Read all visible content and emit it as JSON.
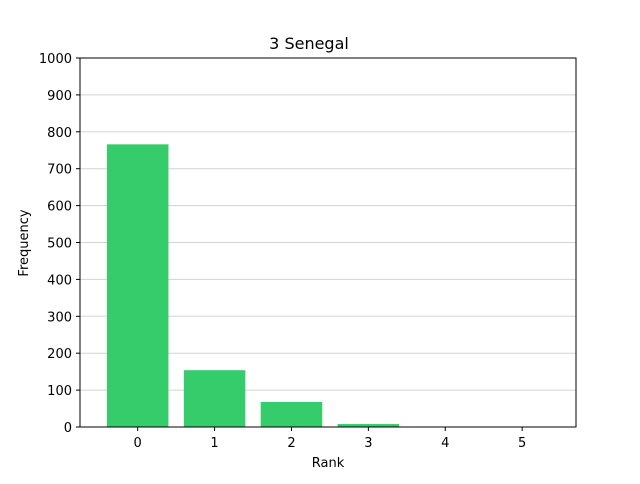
{
  "chart_data": {
    "type": "bar",
    "title": "3 Senegal",
    "xlabel": "Rank",
    "ylabel": "Frequency",
    "categories": [
      "0",
      "1",
      "2",
      "3",
      "4",
      "5"
    ],
    "values": [
      766,
      154,
      68,
      8,
      0,
      0
    ],
    "ylim": [
      0,
      1000
    ],
    "yticks": [
      0,
      100,
      200,
      300,
      400,
      500,
      600,
      700,
      800,
      900,
      1000
    ],
    "xlim": [
      -0.75,
      5.7
    ],
    "grid": "y",
    "legend": "none",
    "bar_color": "#36cc6b",
    "grid_color": "#d3d3d3"
  }
}
